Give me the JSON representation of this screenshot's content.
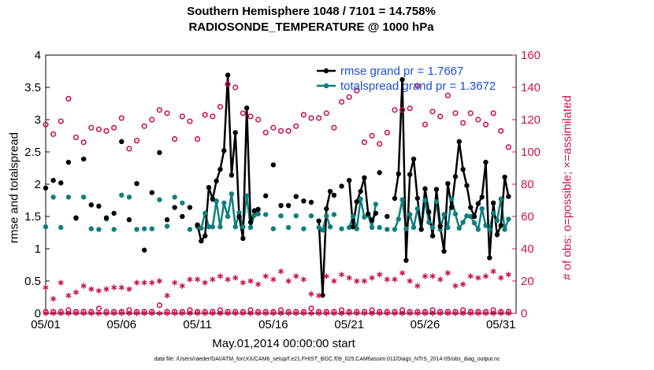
{
  "title": {
    "line1": "Southern Hemisphere 1048 / 7101 = 14.758%",
    "line2": "RADIOSONDE_TEMPERATURE @ 1000 hPa"
  },
  "xlabel": "May.01,2014 00:00:00 start",
  "footnote": "data file: /Users/raeder/DAI/ATM_forcXX/CAM6_setup/f.e21.FHIST_BGC.f09_025.CAM6assim.011/Diags_NTrS_2014-05/obs_diag_output.nc",
  "colors": {
    "rmse": "#000000",
    "spread": "#0f7f7f",
    "obs": "#cc1155"
  },
  "chart_data": {
    "type": "line",
    "title": "Southern Hemisphere 1048 / 7101 = 14.758% RADIOSONDE_TEMPERATURE @ 1000 hPa",
    "xlabel": "May.01,2014 00:00:00 start",
    "ylabel": "rmse and totalspread",
    "y2label": "# of obs: o=possible; ×=assimilated",
    "xlim": [
      1,
      32
    ],
    "ylim": [
      0,
      4
    ],
    "y2lim": [
      0,
      160
    ],
    "xticks": [
      1,
      6,
      11,
      16,
      21,
      26,
      31
    ],
    "xticklabels": [
      "05/01",
      "05/06",
      "05/11",
      "05/16",
      "05/21",
      "05/26",
      "05/31"
    ],
    "yticks": [
      0,
      0.5,
      1,
      1.5,
      2,
      2.5,
      3,
      3.5,
      4
    ],
    "yticklabels": [
      "0",
      "0.5",
      "1",
      "1.5",
      "2",
      "2.5",
      "3",
      "3.5",
      "4"
    ],
    "y2ticks": [
      0,
      20,
      40,
      60,
      80,
      100,
      120,
      140,
      160
    ],
    "y2ticklabels": [
      "0",
      "20",
      "40",
      "60",
      "80",
      "100",
      "120",
      "140",
      "160"
    ],
    "legend": [
      "rmse grand pr = 1.7667",
      "totalspread grand pr = 1.3672"
    ],
    "legend_position": "top-right",
    "series": [
      {
        "name": "rmse grand pr = 1.7667",
        "axis": "left",
        "x": [
          1,
          1.5,
          2,
          2.5,
          3,
          3.5,
          4,
          4.5,
          5,
          5.5,
          6,
          6.5,
          7,
          7.5,
          8,
          8.5,
          9,
          9.5,
          10,
          10.5,
          11,
          11.25,
          11.5,
          11.75,
          12,
          12.25,
          12.5,
          12.75,
          13,
          13.25,
          13.5,
          13.75,
          14,
          14.25,
          14.5,
          14.75,
          15,
          15.5,
          16,
          16.5,
          17,
          17.5,
          18,
          18.5,
          19,
          19.25,
          19.5,
          19.75,
          20,
          20.5,
          21,
          21.25,
          21.5,
          21.75,
          22,
          22.25,
          22.5,
          22.75,
          23,
          23.5,
          24,
          24.25,
          24.5,
          24.75,
          25,
          25.25,
          25.5,
          25.75,
          26,
          26.25,
          26.5,
          26.75,
          27,
          27.25,
          27.5,
          27.75,
          28,
          28.25,
          28.5,
          28.75,
          29,
          29.25,
          29.5,
          29.75,
          30,
          30.25,
          30.5,
          30.75,
          31,
          31.25,
          31.5
        ],
        "y": [
          1.94,
          2.06,
          2.02,
          2.34,
          1.48,
          2.39,
          1.68,
          1.66,
          1.48,
          1.55,
          2.66,
          1.45,
          2.01,
          0.98,
          1.87,
          2.49,
          1.45,
          1.64,
          1.5,
          1.64,
          1.37,
          1.12,
          1.2,
          1.95,
          1.77,
          2.05,
          2.23,
          2.52,
          3.69,
          2.14,
          2.8,
          1.5,
          1.16,
          3.18,
          1.41,
          1.59,
          1.61,
          1.82,
          2.3,
          1.67,
          1.67,
          1.81,
          1.74,
          1.72,
          1.43,
          0.28,
          1.62,
          1.89,
          1.83,
          1.97,
          2.06,
          1.34,
          1.73,
          1.89,
          2.1,
          1.54,
          1.44,
          1.55,
          2.18,
          1.5,
          1.78,
          2.16,
          3.62,
          0.82,
          2.15,
          2.39,
          1.78,
          1.3,
          1.93,
          1.57,
          1.2,
          1.92,
          1.35,
          0.96,
          2.01,
          1.64,
          2.12,
          2.66,
          2.23,
          1.98,
          1.64,
          1.5,
          1.7,
          1.8,
          2.34,
          0.86,
          1.71,
          1.22,
          1.36,
          2.11,
          1.81
        ],
        "connected_segments": [
          [
            11,
            11.25,
            11.5,
            11.75,
            12,
            12.25,
            12.5,
            12.75,
            13,
            13.25,
            13.5,
            13.75,
            14,
            14.25,
            14.5,
            14.75,
            15
          ],
          [
            19,
            19.25,
            19.5,
            19.75
          ],
          [
            21,
            21.25,
            21.5,
            21.75,
            22,
            22.25,
            22.5,
            22.75
          ],
          [
            24,
            24.25,
            24.5,
            24.75,
            25,
            25.25,
            25.5,
            25.75,
            26,
            26.25,
            26.5,
            26.75,
            27,
            27.25,
            27.5,
            27.75,
            28,
            28.25,
            28.5,
            28.75,
            29,
            29.25,
            29.5,
            29.75,
            30,
            30.25,
            30.5,
            30.75,
            31,
            31.25,
            31.5
          ]
        ]
      },
      {
        "name": "totalspread grand pr = 1.3672",
        "axis": "left",
        "x": [
          1,
          1.5,
          2,
          2.5,
          3,
          3.5,
          4,
          4.5,
          5,
          5.5,
          6,
          6.5,
          7,
          7.5,
          8,
          8.5,
          9,
          9.5,
          10,
          10.5,
          11,
          11.25,
          11.5,
          11.75,
          12,
          12.25,
          12.5,
          12.75,
          13,
          13.25,
          13.5,
          13.75,
          14,
          14.25,
          14.5,
          14.75,
          15,
          15.5,
          16,
          16.5,
          17,
          17.5,
          18,
          18.5,
          19,
          19.25,
          19.5,
          19.75,
          20,
          20.5,
          21,
          21.25,
          21.5,
          21.75,
          22,
          22.25,
          22.5,
          22.75,
          23,
          23.5,
          24,
          24.25,
          24.5,
          24.75,
          25,
          25.25,
          25.5,
          25.75,
          26,
          26.25,
          26.5,
          26.75,
          27,
          27.25,
          27.5,
          27.75,
          28,
          28.25,
          28.5,
          28.75,
          29,
          29.25,
          29.5,
          29.75,
          30,
          30.25,
          30.5,
          30.75,
          31,
          31.25,
          31.5
        ],
        "y": [
          1.34,
          1.8,
          1.33,
          1.8,
          1.47,
          1.8,
          1.31,
          1.3,
          1.46,
          1.3,
          1.83,
          1.8,
          1.3,
          1.31,
          1.31,
          1.76,
          1.35,
          1.8,
          1.71,
          1.3,
          1.34,
          1.32,
          1.55,
          1.34,
          1.34,
          1.74,
          1.34,
          1.71,
          1.5,
          1.85,
          1.34,
          1.56,
          1.34,
          1.82,
          1.33,
          1.52,
          1.54,
          1.53,
          1.31,
          1.51,
          1.33,
          1.51,
          1.31,
          1.51,
          1.33,
          1.29,
          1.51,
          1.34,
          1.53,
          1.31,
          1.33,
          1.5,
          1.31,
          1.77,
          1.49,
          1.52,
          1.33,
          1.69,
          1.33,
          1.3,
          1.3,
          1.46,
          1.76,
          1.31,
          1.53,
          1.33,
          1.62,
          1.3,
          1.75,
          1.41,
          1.33,
          1.73,
          1.3,
          1.53,
          1.33,
          1.77,
          1.54,
          1.32,
          1.41,
          1.51,
          1.5,
          1.4,
          1.3,
          1.62,
          1.36,
          1.3,
          1.55,
          1.44,
          1.77,
          1.3,
          1.46
        ],
        "connected_segments": [
          [
            11,
            11.25,
            11.5,
            11.75,
            12,
            12.25,
            12.5,
            12.75,
            13,
            13.25,
            13.5,
            13.75,
            14,
            14.25,
            14.5,
            14.75,
            15
          ],
          [
            19,
            19.25,
            19.5,
            19.75
          ],
          [
            21,
            21.25,
            21.5,
            21.75,
            22,
            22.25,
            22.5,
            22.75
          ],
          [
            24,
            24.25,
            24.5,
            24.75,
            25,
            25.25,
            25.5,
            25.75,
            26,
            26.25,
            26.5,
            26.75,
            27,
            27.25,
            27.5,
            27.75,
            28,
            28.25,
            28.5,
            28.75,
            29,
            29.25,
            29.5,
            29.75,
            30,
            30.25,
            30.5,
            30.75,
            31,
            31.25,
            31.5
          ]
        ]
      },
      {
        "name": "obs possible",
        "axis": "right",
        "marker": "circle",
        "x": [
          1,
          1.5,
          2,
          2.5,
          3,
          3.5,
          4,
          4.5,
          5,
          5.5,
          6,
          6.5,
          7,
          7.5,
          8,
          8.5,
          9,
          9.5,
          10,
          10.5,
          11,
          11.5,
          12,
          12.5,
          13,
          13.5,
          14,
          14.5,
          15,
          15.5,
          16,
          16.5,
          17,
          17.5,
          18,
          18.5,
          19,
          19.5,
          20,
          20.5,
          21,
          21.5,
          22,
          22.5,
          23,
          23.5,
          24,
          24.5,
          25,
          25.5,
          26,
          26.5,
          27,
          27.5,
          28,
          28.5,
          29,
          29.5,
          30,
          30.5,
          31,
          31.5
        ],
        "y": [
          117,
          111,
          119,
          133,
          109,
          106,
          115,
          114,
          113,
          115,
          121,
          102,
          107,
          116,
          120,
          126,
          124,
          108,
          122,
          119,
          108,
          123,
          122,
          128,
          142,
          140,
          124,
          122,
          120,
          112,
          115,
          113,
          113,
          116,
          123,
          121,
          121,
          124,
          115,
          131,
          134,
          138,
          106,
          110,
          105,
          112,
          126,
          126,
          127,
          141,
          117,
          125,
          122,
          135,
          124,
          118,
          124,
          120,
          117,
          124,
          113,
          103
        ],
        "y2_note": "right axis"
      },
      {
        "name": "obs assimilated",
        "axis": "right",
        "marker": "asterisk",
        "x": [
          1,
          1.5,
          2,
          2.5,
          3,
          3.5,
          4,
          4.5,
          5,
          5.5,
          6,
          6.5,
          7,
          7.5,
          8,
          8.5,
          9,
          9.5,
          10,
          10.5,
          11,
          11.5,
          12,
          12.5,
          13,
          13.5,
          14,
          14.5,
          15,
          15.5,
          16,
          16.5,
          17,
          17.5,
          18,
          18.5,
          19,
          19.5,
          20,
          20.5,
          21,
          21.5,
          22,
          22.5,
          23,
          23.5,
          24,
          24.5,
          25,
          25.5,
          26,
          26.5,
          27,
          27.5,
          28,
          28.5,
          29,
          29.5,
          30,
          30.5,
          31,
          31.5
        ],
        "y": [
          16,
          9,
          19,
          11,
          13,
          17,
          15,
          14,
          15,
          16,
          16,
          15,
          19,
          19,
          19,
          20,
          11,
          19,
          17,
          21,
          21,
          19,
          21,
          23,
          21,
          22,
          19,
          20,
          18,
          23,
          21,
          26,
          20,
          23,
          21,
          12,
          11,
          23,
          20,
          24,
          22,
          20,
          20,
          22,
          24,
          21,
          21,
          25,
          20,
          17,
          23,
          23,
          21,
          25,
          17,
          18,
          23,
          22,
          23,
          26,
          22,
          24
        ]
      },
      {
        "name": "obs possible baseline",
        "axis": "right",
        "marker": "circle",
        "x": [
          1,
          1.5,
          2,
          2.5,
          3,
          3.5,
          4,
          4.5,
          5,
          5.5,
          6,
          6.5,
          7,
          7.5,
          8,
          8.5,
          9,
          9.5,
          10,
          10.5,
          11,
          11.5,
          12,
          12.5,
          13,
          13.5,
          14,
          14.5,
          15,
          15.5,
          16,
          16.5,
          17,
          17.5,
          18,
          18.5,
          19,
          19.5,
          20,
          20.5,
          21,
          21.5,
          22,
          22.5,
          23,
          23.5,
          24,
          24.5,
          25,
          25.5,
          26,
          26.5,
          27,
          27.5,
          28,
          28.5,
          29,
          29.5,
          30,
          30.5,
          31,
          31.5
        ],
        "y": [
          1,
          1,
          1,
          2,
          1,
          1,
          1,
          3,
          1,
          1,
          1,
          2,
          1,
          1,
          1,
          5,
          1,
          1,
          1,
          2,
          1,
          1,
          1,
          2,
          1,
          1,
          1,
          2,
          1,
          1,
          1,
          2,
          1,
          1,
          1,
          3,
          1,
          1,
          1,
          2,
          1,
          1,
          1,
          2,
          1,
          1,
          1,
          2,
          1,
          1,
          1,
          2,
          1,
          1,
          1,
          2,
          1,
          1,
          1,
          2,
          1,
          1
        ]
      },
      {
        "name": "obs assimilated baseline",
        "axis": "right",
        "marker": "asterisk",
        "x": [
          1,
          1.5,
          2,
          2.5,
          3,
          3.5,
          4,
          4.5,
          5,
          5.5,
          6,
          6.5,
          7,
          7.5,
          8,
          8.5,
          9,
          9.5,
          10,
          10.5,
          11,
          11.5,
          12,
          12.5,
          13,
          13.5,
          14,
          14.5,
          15,
          15.5,
          16,
          16.5,
          17,
          17.5,
          18,
          18.5,
          19,
          19.5,
          20,
          20.5,
          21,
          21.5,
          22,
          22.5,
          23,
          23.5,
          24,
          24.5,
          25,
          25.5,
          26,
          26.5,
          27,
          27.5,
          28,
          28.5,
          29,
          29.5,
          30,
          30.5,
          31,
          31.5
        ],
        "y": [
          0,
          0,
          0,
          0,
          0,
          0,
          0,
          0,
          0,
          0,
          0,
          0,
          0,
          0,
          0,
          0,
          0,
          0,
          0,
          0,
          0,
          0,
          0,
          0,
          0,
          0,
          0,
          0,
          0,
          0,
          0,
          0,
          0,
          0,
          0,
          0,
          0,
          0,
          0,
          0,
          0,
          0,
          0,
          0,
          0,
          0,
          0,
          0,
          0,
          0,
          0,
          0,
          0,
          0,
          0,
          0,
          0,
          0,
          0,
          0,
          0,
          0
        ]
      }
    ],
    "grid": false
  }
}
